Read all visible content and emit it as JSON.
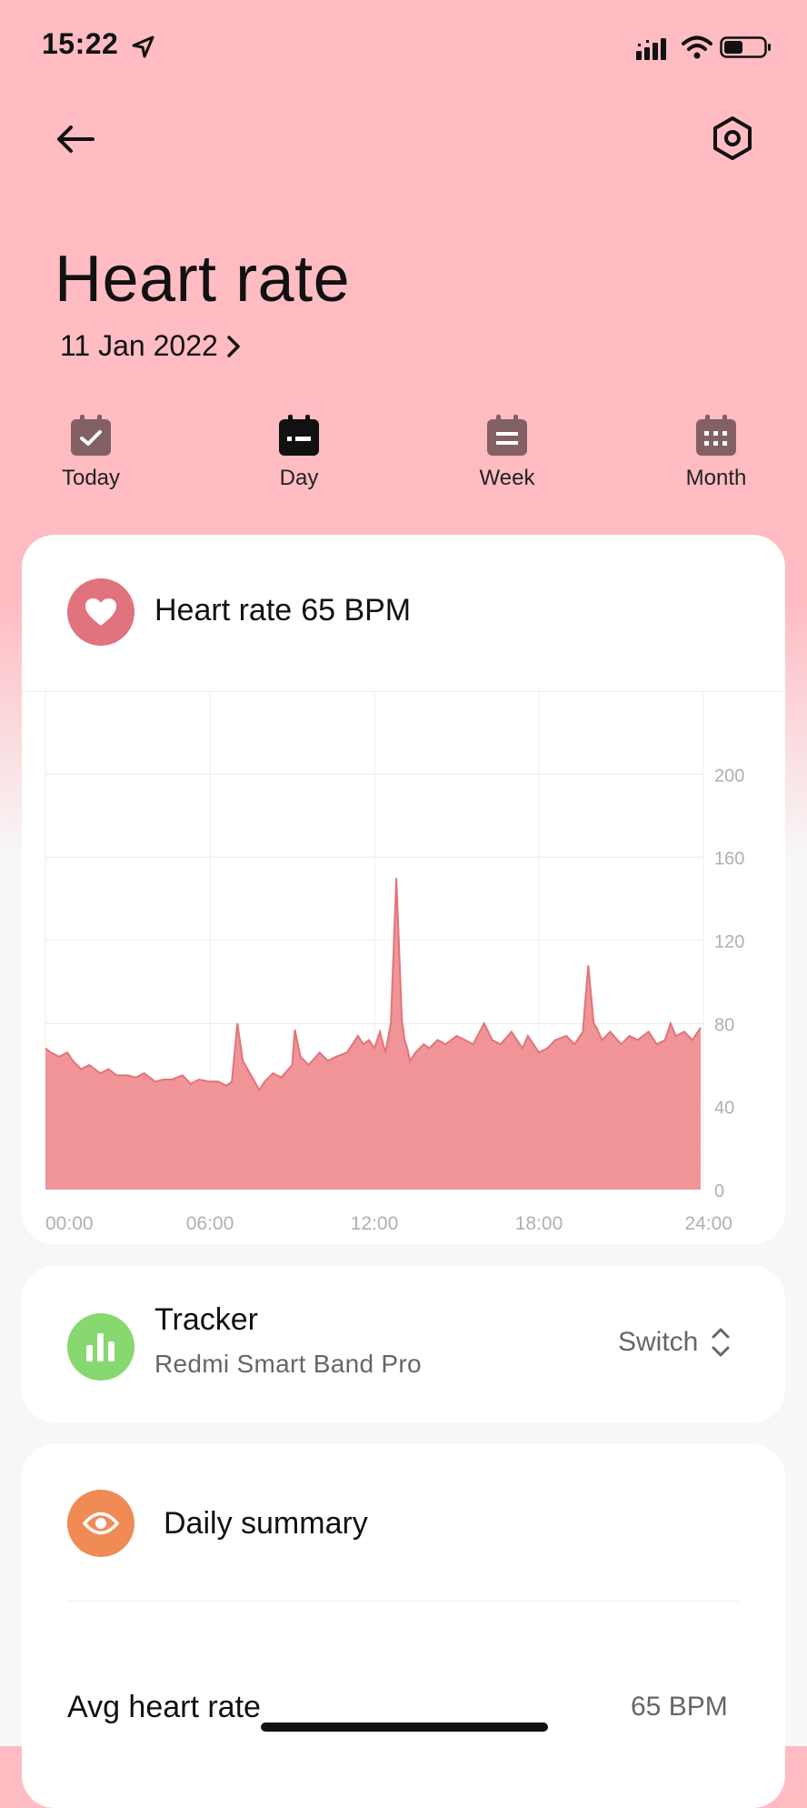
{
  "status_bar": {
    "time": "15:22"
  },
  "header": {
    "title": "Heart rate",
    "date": "11 Jan 2022"
  },
  "tabs": [
    {
      "label": "Today",
      "icon": "calendar-check-icon",
      "active": false
    },
    {
      "label": "Day",
      "icon": "calendar-day-icon",
      "active": true
    },
    {
      "label": "Week",
      "icon": "calendar-week-icon",
      "active": false
    },
    {
      "label": "Month",
      "icon": "calendar-month-icon",
      "active": false
    }
  ],
  "chart_card": {
    "label": "Heart rate",
    "value": "65 BPM"
  },
  "chart_data": {
    "type": "area",
    "x_ticks": [
      "00:00",
      "06:00",
      "12:00",
      "18:00",
      "24:00"
    ],
    "y_ticks": [
      "0",
      "40",
      "80",
      "120",
      "160",
      "200"
    ],
    "xlim": [
      0,
      24
    ],
    "ylim": [
      0,
      240
    ],
    "grid": true,
    "color": "#e2747b",
    "fill": "#f09497",
    "x": [
      0,
      0.2,
      0.5,
      0.8,
      1,
      1.3,
      1.6,
      2,
      2.3,
      2.6,
      3,
      3.3,
      3.6,
      4,
      4.3,
      4.6,
      5,
      5.3,
      5.6,
      6,
      6.3,
      6.6,
      6.8,
      7,
      7.2,
      7.5,
      7.8,
      8,
      8.3,
      8.6,
      9,
      9.1,
      9.3,
      9.6,
      10,
      10.3,
      10.6,
      11,
      11.2,
      11.4,
      11.6,
      11.8,
      12,
      12.2,
      12.4,
      12.6,
      12.8,
      13,
      13.1,
      13.2,
      13.3,
      13.5,
      13.8,
      14,
      14.3,
      14.6,
      15,
      15.3,
      15.6,
      16,
      16.3,
      16.6,
      17,
      17.2,
      17.4,
      17.6,
      17.8,
      18,
      18.3,
      18.6,
      19,
      19.3,
      19.6,
      19.8,
      20,
      20.1,
      20.3,
      20.6,
      21,
      21.3,
      21.6,
      22,
      22.3,
      22.6,
      22.8,
      23,
      23.3,
      23.6,
      23.9
    ],
    "y": [
      68,
      66,
      64,
      66,
      62,
      58,
      60,
      56,
      58,
      55,
      55,
      54,
      56,
      52,
      53,
      53,
      55,
      51,
      53,
      52,
      52,
      50,
      52,
      80,
      62,
      55,
      48,
      52,
      56,
      54,
      60,
      77,
      64,
      60,
      66,
      62,
      64,
      66,
      70,
      74,
      70,
      72,
      68,
      76,
      66,
      80,
      150,
      82,
      72,
      68,
      62,
      66,
      70,
      68,
      72,
      70,
      74,
      72,
      70,
      80,
      72,
      70,
      76,
      72,
      68,
      74,
      70,
      66,
      68,
      72,
      74,
      70,
      76,
      108,
      80,
      78,
      72,
      76,
      70,
      74,
      72,
      76,
      70,
      72,
      80,
      74,
      76,
      72,
      78
    ]
  },
  "tracker_card": {
    "title": "Tracker",
    "device": "Redmi Smart Band Pro",
    "switch_label": "Switch"
  },
  "summary_card": {
    "title": "Daily summary",
    "avg_label": "Avg heart rate",
    "avg_value": "65 BPM"
  },
  "colors": {
    "background_top": "#ffbcc3",
    "background_bottom": "#f7f7f7",
    "heart_icon_bg": "#e0737d",
    "tracker_icon_bg": "#86d86f",
    "summary_icon_bg": "#f08b56",
    "tab_icon_inactive": "#826064",
    "tab_icon_active": "#111111"
  }
}
